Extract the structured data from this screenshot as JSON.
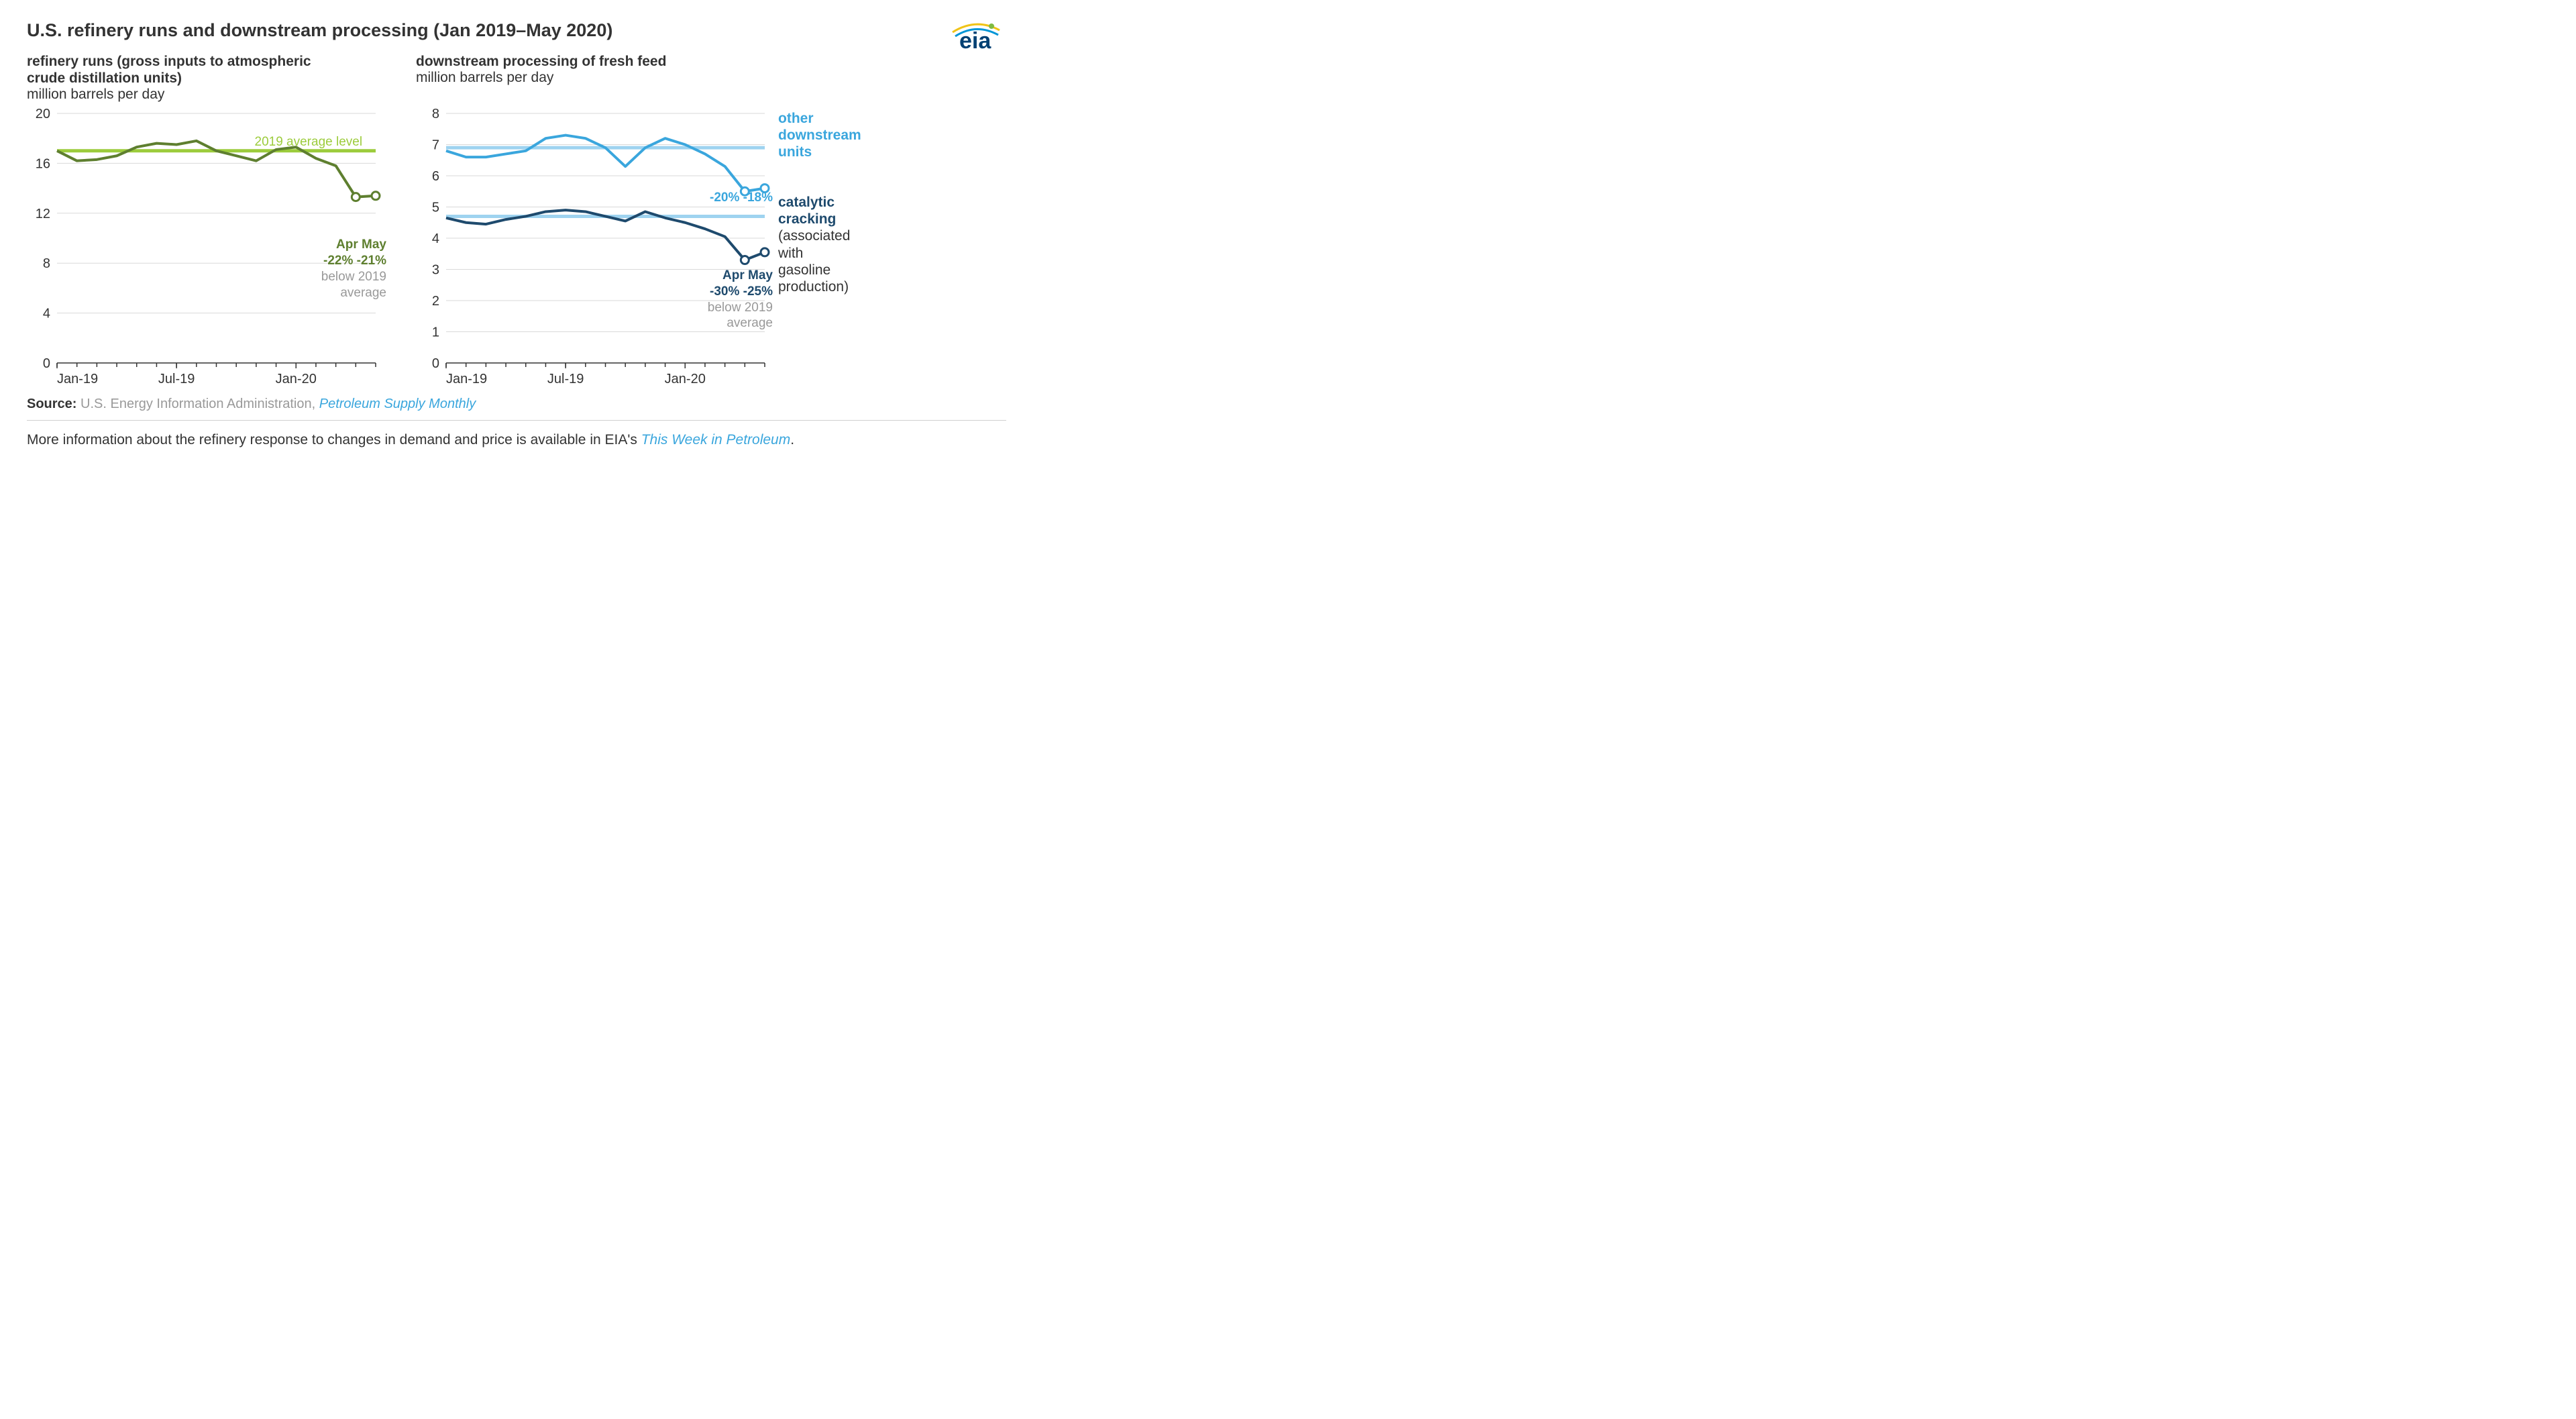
{
  "main_title": "U.S. refinery runs and downstream processing (Jan 2019–May 2020)",
  "logo_text": "eia",
  "left_chart": {
    "type": "line",
    "subtitle_line1": "refinery runs (gross inputs to atmospheric",
    "subtitle_line2": "crude distillation units)",
    "unit": "million barrels per day",
    "ylim": [
      0,
      20
    ],
    "yticks": [
      0,
      4,
      8,
      12,
      16,
      20
    ],
    "xticks": [
      "Jan-19",
      "Jul-19",
      "Jan-20"
    ],
    "xtick_positions": [
      0,
      6,
      12
    ],
    "x_max_index": 16,
    "grid_color": "#d9d9d9",
    "background_color": "#ffffff",
    "avg_level": 17.0,
    "avg_label": "2019 average level",
    "avg_color": "#9ccc3c",
    "series": {
      "color": "#5e7f2f",
      "values": [
        17.0,
        16.2,
        16.3,
        16.6,
        17.3,
        17.6,
        17.5,
        17.8,
        17.0,
        16.6,
        16.2,
        17.1,
        17.3,
        16.4,
        15.8,
        13.3,
        13.4
      ],
      "marker_indices": [
        15,
        16
      ]
    },
    "annot": {
      "line1": "Apr  May",
      "line2": "-22% -21%",
      "line3": "below 2019",
      "line4": "average",
      "bold_color": "#5e7f2f",
      "gray_color": "#999999"
    }
  },
  "right_chart": {
    "type": "line",
    "subtitle": "downstream processing of fresh feed",
    "unit": "million barrels per day",
    "ylim": [
      0,
      8
    ],
    "yticks": [
      0,
      1,
      2,
      3,
      4,
      5,
      6,
      7,
      8
    ],
    "xticks": [
      "Jan-19",
      "Jul-19",
      "Jan-20"
    ],
    "xtick_positions": [
      0,
      6,
      12
    ],
    "x_max_index": 16,
    "grid_color": "#d9d9d9",
    "background_color": "#ffffff",
    "series_other": {
      "label_line1": "other",
      "label_line2": "downstream",
      "label_line3": "units",
      "color": "#3aa6dd",
      "avg_level": 6.9,
      "values": [
        6.8,
        6.6,
        6.6,
        6.7,
        6.8,
        7.2,
        7.3,
        7.2,
        6.9,
        6.3,
        6.9,
        7.2,
        7.0,
        6.7,
        6.3,
        5.5,
        5.6
      ],
      "marker_indices": [
        15,
        16
      ],
      "annot_line": "-20% -18%"
    },
    "series_catalytic": {
      "label_line1": "catalytic",
      "label_line2": "cracking",
      "label_line3": "(associated",
      "label_line4": "with gasoline",
      "label_line5": "production)",
      "color": "#1e4a6d",
      "avg_level": 4.7,
      "values": [
        4.65,
        4.5,
        4.45,
        4.6,
        4.7,
        4.85,
        4.9,
        4.85,
        4.7,
        4.55,
        4.85,
        4.65,
        4.5,
        4.3,
        4.05,
        3.3,
        3.55
      ],
      "marker_indices": [
        15,
        16
      ],
      "annot_line1": "Apr  May",
      "annot_line2": "-30% -25%",
      "annot_line3": "below 2019",
      "annot_line4": "average"
    }
  },
  "source": {
    "label": "Source:",
    "text": " U.S. Energy Information Administration, ",
    "link_text": "Petroleum Supply Monthly"
  },
  "footer": {
    "text_before": "More information about the refinery response to changes in demand and price is available in EIA's ",
    "link_text": "This Week in Petroleum",
    "text_after": "."
  },
  "colors": {
    "text": "#333333",
    "link": "#3aa6dd"
  }
}
